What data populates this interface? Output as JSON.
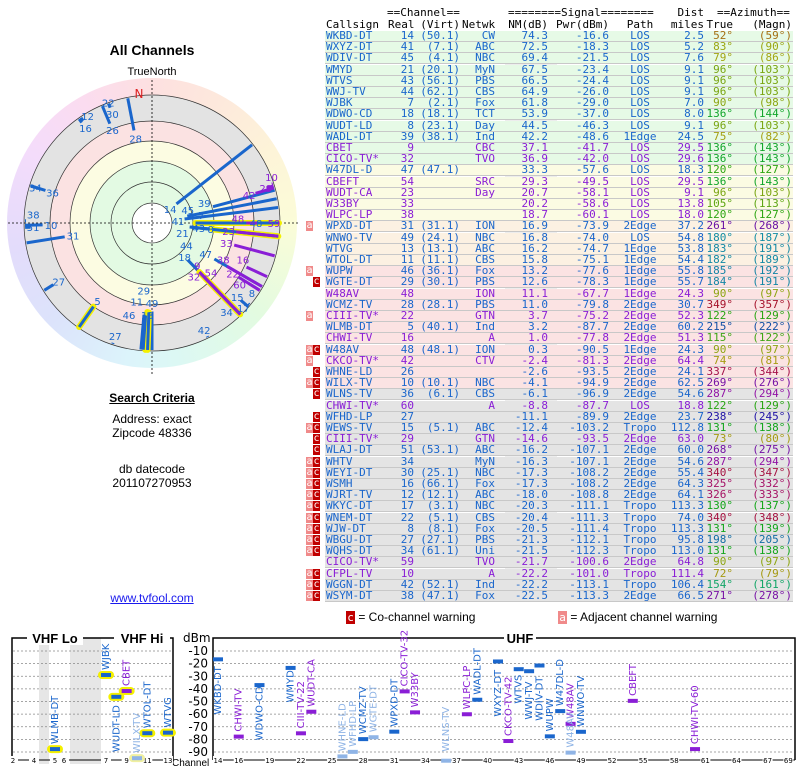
{
  "polar": {
    "title": "All Channels",
    "north_label": "TrueNorth",
    "n_mark": "N"
  },
  "search": {
    "heading": "Search Criteria",
    "address": "Address: exact",
    "zipcode": "Zipcode 48336",
    "db_label": "db datecode",
    "db_value": "201107270953"
  },
  "link": "www.tvfool.com",
  "table": {
    "group_channel": "==Channel==",
    "group_signal": "========Signal========",
    "group_dist": "Dist",
    "group_azimuth": "==Azimuth==",
    "headers": [
      "Callsign",
      "Real",
      "(Virt)",
      "Netwk",
      "NM(dB)",
      "Pwr(dBm)",
      "Path",
      "miles",
      "True",
      "(Magn)"
    ],
    "rows": [
      [
        "",
        "WKBD-DT",
        "14",
        "(50.1)",
        "CW",
        "74.3",
        "-16.6",
        "LOS",
        "2.5",
        "52°",
        "(59°)",
        "d",
        "g"
      ],
      [
        "",
        "WXYZ-DT",
        "41",
        "(7.1)",
        "ABC",
        "72.5",
        "-18.3",
        "LOS",
        "5.2",
        "83°",
        "(90°)",
        "d",
        "g"
      ],
      [
        "",
        "WDIV-DT",
        "45",
        "(4.1)",
        "NBC",
        "69.4",
        "-21.5",
        "LOS",
        "7.6",
        "79°",
        "(86°)",
        "d",
        "g"
      ],
      [
        "",
        "WMYD",
        "21",
        "(20.1)",
        "MyN",
        "67.5",
        "-23.4",
        "LOS",
        "9.1",
        "96°",
        "(103°)",
        "d",
        "g"
      ],
      [
        "",
        "WTVS",
        "43",
        "(56.1)",
        "PBS",
        "66.5",
        "-24.4",
        "LOS",
        "9.1",
        "96°",
        "(103°)",
        "d",
        "g"
      ],
      [
        "",
        "WWJ-TV",
        "44",
        "(62.1)",
        "CBS",
        "64.9",
        "-26.0",
        "LOS",
        "9.1",
        "96°",
        "(103°)",
        "d",
        "g"
      ],
      [
        "",
        "WJBK",
        "7",
        "(2.1)",
        "Fox",
        "61.8",
        "-29.0",
        "LOS",
        "7.0",
        "90°",
        "(98°)",
        "d",
        "g"
      ],
      [
        "",
        "WDWO-CD",
        "18",
        "(18.1)",
        "TCT",
        "53.9",
        "-37.0",
        "LOS",
        "8.0",
        "136°",
        "(144°)",
        "d",
        "g"
      ],
      [
        "",
        "WUDT-LD",
        "8",
        "(23.1)",
        "Day",
        "44.5",
        "-46.3",
        "LOS",
        "9.1",
        "96°",
        "(103°)",
        "d",
        "g"
      ],
      [
        "",
        "WADL-DT",
        "39",
        "(38.1)",
        "Ind",
        "42.2",
        "-48.6",
        "1Edge",
        "24.5",
        "75°",
        "(82°)",
        "d",
        "g"
      ],
      [
        "",
        "CBET",
        "9",
        "",
        "CBC",
        "37.1",
        "-41.7",
        "LOS",
        "29.5",
        "136°",
        "(143°)",
        "a",
        "g"
      ],
      [
        "",
        "CICO-TV*",
        "32",
        "",
        "TVO",
        "36.9",
        "-42.0",
        "LOS",
        "29.6",
        "136°",
        "(143°)",
        "a",
        "g"
      ],
      [
        "",
        "W47DL-D",
        "47",
        "(47.1)",
        "",
        "33.3",
        "-57.6",
        "LOS",
        "18.3",
        "120°",
        "(127°)",
        "d",
        "y"
      ],
      [
        "",
        "CBEFT",
        "54",
        "",
        "SRC",
        "29.3",
        "-49.5",
        "LOS",
        "29.5",
        "136°",
        "(143°)",
        "a",
        "y"
      ],
      [
        "",
        "WUDT-CA",
        "23",
        "",
        "Day",
        "20.7",
        "-58.1",
        "LOS",
        "9.1",
        "96°",
        "(103°)",
        "a",
        "y"
      ],
      [
        "",
        "W33BY",
        "33",
        "",
        "",
        "20.2",
        "-58.6",
        "LOS",
        "13.8",
        "105°",
        "(113°)",
        "a",
        "y"
      ],
      [
        "",
        "WLPC-LP",
        "38",
        "",
        "",
        "18.7",
        "-60.1",
        "LOS",
        "18.0",
        "120°",
        "(127°)",
        "a",
        "y"
      ],
      [
        "a",
        "WPXD-DT",
        "31",
        "(31.1)",
        "ION",
        "16.9",
        "-73.9",
        "2Edge",
        "37.2",
        "261°",
        "(268°)",
        "d",
        "o"
      ],
      [
        "",
        "WNWO-TV",
        "49",
        "(24.1)",
        "NBC",
        "16.8",
        "-74.0",
        "LOS",
        "54.8",
        "180°",
        "(187°)",
        "d",
        "o"
      ],
      [
        "",
        "WTVG",
        "13",
        "(13.1)",
        "ABC",
        "16.2",
        "-74.7",
        "1Edge",
        "53.8",
        "183°",
        "(191°)",
        "d",
        "o"
      ],
      [
        "",
        "WTOL-DT",
        "11",
        "(11.1)",
        "CBS",
        "15.8",
        "-75.1",
        "1Edge",
        "54.4",
        "182°",
        "(189°)",
        "d",
        "o"
      ],
      [
        "a",
        "WUPW",
        "46",
        "(36.1)",
        "Fox",
        "13.2",
        "-77.6",
        "1Edge",
        "55.8",
        "185°",
        "(192°)",
        "d",
        "p"
      ],
      [
        "c",
        "WGTE-DT",
        "29",
        "(30.1)",
        "PBS",
        "12.6",
        "-78.3",
        "1Edge",
        "55.7",
        "184°",
        "(191°)",
        "d",
        "p"
      ],
      [
        "",
        "W48AV",
        "48",
        "",
        "ION",
        "11.1",
        "-67.7",
        "1Edge",
        "24.3",
        "90°",
        "(97°)",
        "a",
        "p"
      ],
      [
        "",
        "WCMZ-TV",
        "28",
        "(28.1)",
        "PBS",
        "11.0",
        "-79.8",
        "2Edge",
        "30.7",
        "349°",
        "(357°)",
        "d",
        "p"
      ],
      [
        "a",
        "CIII-TV*",
        "22",
        "",
        "GTN",
        "3.7",
        "-75.2",
        "2Edge",
        "52.3",
        "122°",
        "(129°)",
        "a",
        "p"
      ],
      [
        "",
        "WLMB-DT",
        "5",
        "(40.1)",
        "Ind",
        "3.2",
        "-87.7",
        "2Edge",
        "60.2",
        "215°",
        "(222°)",
        "d",
        "p"
      ],
      [
        "",
        "CHWI-TV",
        "16",
        "",
        "A",
        "1.0",
        "-77.8",
        "2Edge",
        "51.3",
        "115°",
        "(122°)",
        "a",
        "p"
      ],
      [
        "ac",
        "W48AV",
        "48",
        "(48.1)",
        "ION",
        "0.3",
        "-90.5",
        "1Edge",
        "24.3",
        "90°",
        "(97°)",
        "d",
        "p"
      ],
      [
        "a",
        "CKCO-TV*",
        "42",
        "",
        "CTV",
        "-2.4",
        "-81.3",
        "2Edge",
        "64.4",
        "74°",
        "(81°)",
        "a",
        "p"
      ],
      [
        "c",
        "WHNE-LD",
        "26",
        "",
        "",
        "-2.6",
        "-93.5",
        "2Edge",
        "24.1",
        "337°",
        "(344°)",
        "d",
        "p"
      ],
      [
        "ac",
        "WILX-TV",
        "10",
        "(10.1)",
        "NBC",
        "-4.1",
        "-94.9",
        "2Edge",
        "62.5",
        "269°",
        "(276°)",
        "d",
        "p"
      ],
      [
        "c",
        "WLNS-TV",
        "36",
        "(6.1)",
        "CBS",
        "-6.1",
        "-96.9",
        "2Edge",
        "54.6",
        "287°",
        "(294°)",
        "d",
        "k"
      ],
      [
        "",
        "CHWI-TV*",
        "60",
        "",
        "A",
        "-8.8",
        "-87.7",
        "LOS",
        "18.8",
        "122°",
        "(129°)",
        "a",
        "k"
      ],
      [
        "c",
        "WFHD-LP",
        "27",
        "",
        "",
        "-11.1",
        "-89.9",
        "2Edge",
        "23.7",
        "238°",
        "(245°)",
        "d",
        "k"
      ],
      [
        "ac",
        "WEWS-TV",
        "15",
        "(5.1)",
        "ABC",
        "-12.4",
        "-103.2",
        "Tropo",
        "112.8",
        "131°",
        "(138°)",
        "d",
        "k"
      ],
      [
        "c",
        "CIII-TV*",
        "29",
        "",
        "GTN",
        "-14.6",
        "-93.5",
        "2Edge",
        "63.0",
        "73°",
        "(80°)",
        "a",
        "k"
      ],
      [
        "c",
        "WLAJ-DT",
        "51",
        "(53.1)",
        "ABC",
        "-16.2",
        "-107.1",
        "2Edge",
        "60.0",
        "268°",
        "(275°)",
        "d",
        "k"
      ],
      [
        "ac",
        "WHTV",
        "34",
        "",
        "MyN",
        "-16.3",
        "-107.1",
        "2Edge",
        "54.6",
        "287°",
        "(294°)",
        "d",
        "k"
      ],
      [
        "ac",
        "WEYI-DT",
        "30",
        "(25.1)",
        "NBC",
        "-17.3",
        "-108.2",
        "2Edge",
        "55.4",
        "340°",
        "(347°)",
        "d",
        "k"
      ],
      [
        "ac",
        "WSMH",
        "16",
        "(66.1)",
        "Fox",
        "-17.3",
        "-108.2",
        "2Edge",
        "64.3",
        "325°",
        "(332°)",
        "d",
        "k"
      ],
      [
        "ac",
        "WJRT-TV",
        "12",
        "(12.1)",
        "ABC",
        "-18.0",
        "-108.8",
        "2Edge",
        "64.1",
        "326°",
        "(333°)",
        "d",
        "k"
      ],
      [
        "ac",
        "WKYC-DT",
        "17",
        "(3.1)",
        "NBC",
        "-20.3",
        "-111.1",
        "Tropo",
        "113.3",
        "130°",
        "(137°)",
        "d",
        "k"
      ],
      [
        "ac",
        "WNEM-DT",
        "22",
        "(5.1)",
        "CBS",
        "-20.4",
        "-111.3",
        "Tropo",
        "74.0",
        "340°",
        "(348°)",
        "d",
        "k"
      ],
      [
        "ac",
        "WJW-DT",
        "8",
        "(8.1)",
        "Fox",
        "-20.5",
        "-111.4",
        "Tropo",
        "113.3",
        "131°",
        "(139°)",
        "d",
        "k"
      ],
      [
        "ac",
        "WBGU-DT",
        "27",
        "(27.1)",
        "PBS",
        "-21.3",
        "-112.1",
        "Tropo",
        "95.8",
        "198°",
        "(205°)",
        "d",
        "k"
      ],
      [
        "ac",
        "WQHS-DT",
        "34",
        "(61.1)",
        "Uni",
        "-21.5",
        "-112.3",
        "Tropo",
        "113.0",
        "131°",
        "(138°)",
        "d",
        "k"
      ],
      [
        "",
        "CICO-TV*",
        "59",
        "",
        "TVO",
        "-21.7",
        "-100.6",
        "2Edge",
        "64.8",
        "90°",
        "(97°)",
        "a",
        "k"
      ],
      [
        "ac",
        "CFPL-TV",
        "10",
        "",
        "A",
        "-22.2",
        "-101.0",
        "Tropo",
        "111.4",
        "72°",
        "(79°)",
        "a",
        "k"
      ],
      [
        "ac",
        "WGGN-DT",
        "42",
        "(52.1)",
        "Ind",
        "-22.2",
        "-113.1",
        "Tropo",
        "106.4",
        "154°",
        "(161°)",
        "d",
        "k"
      ],
      [
        "ac",
        "WSYM-DT",
        "38",
        "(47.1)",
        "Fox",
        "-22.5",
        "-113.3",
        "2Edge",
        "66.5",
        "271°",
        "(278°)",
        "d",
        "k"
      ]
    ]
  },
  "legend": {
    "co_flag": "c",
    "co_text": "= Co-channel warning",
    "adj_flag": "a",
    "adj_text": "= Adjacent channel warning"
  },
  "bandchart": {
    "vhf_lo": "VHF Lo",
    "vhf_hi": "VHF Hi",
    "uhf": "UHF",
    "unit": "dBm",
    "channel_label": "Channel",
    "dbm_ticks": [
      "-10",
      "-20",
      "-30",
      "-40",
      "-50",
      "-60",
      "-70",
      "-80",
      "-90"
    ],
    "vhf_ticks": [
      "2",
      "4",
      "5",
      "6",
      "7",
      "9",
      "11",
      "13"
    ],
    "uhf_ticks": [
      "14",
      "16",
      "19",
      "22",
      "25",
      "28",
      "31",
      "34",
      "37",
      "40",
      "43",
      "46",
      "49",
      "52",
      "55",
      "58",
      "61",
      "64",
      "67",
      "69"
    ]
  },
  "colors": {
    "digital": "#1a66cc",
    "analog": "#8a1ed6",
    "flag_a": "#f08a8a",
    "flag_c": "#c00000"
  }
}
